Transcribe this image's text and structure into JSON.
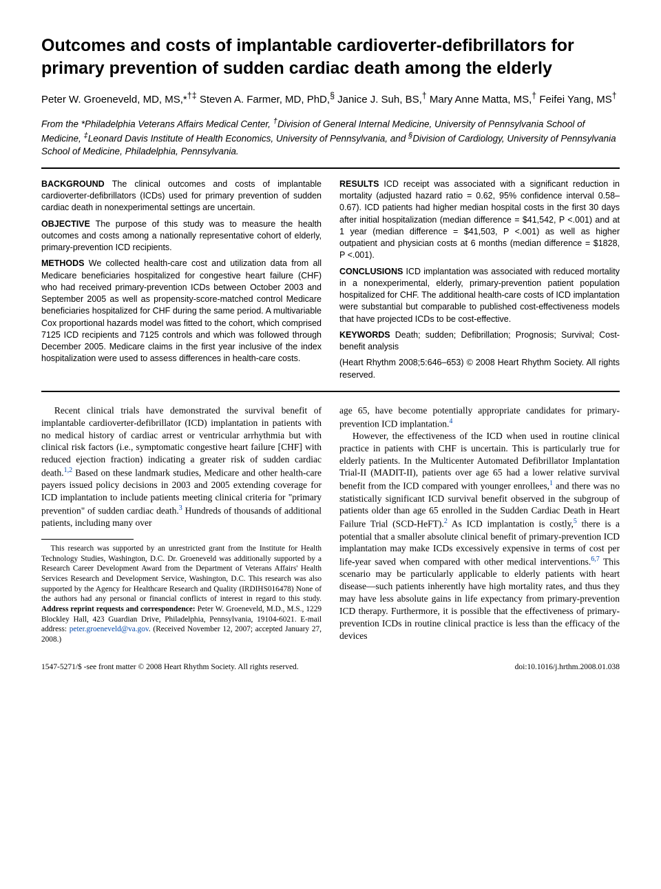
{
  "title": "Outcomes and costs of implantable cardioverter-defibrillators for primary prevention of sudden cardiac death among the elderly",
  "authors_html": "Peter W. Groeneveld, MD, MS,*<sup>†‡</sup> Steven A. Farmer, MD, PhD,<sup>§</sup> Janice J. Suh, BS,<sup>†</sup> Mary Anne Matta, MS,<sup>†</sup> Feifei Yang, MS<sup>†</sup>",
  "affiliations_html": "From the *Philadelphia Veterans Affairs Medical Center, <sup>†</sup>Division of General Internal Medicine, University of Pennsylvania School of Medicine, <sup>‡</sup>Leonard Davis Institute of Health Economics, University of Pennsylvania, and <sup>§</sup>Division of Cardiology, University of Pennsylvania School of Medicine, Philadelphia, Pennsylvania.",
  "abstract": {
    "background": {
      "label": "BACKGROUND",
      "text": "The clinical outcomes and costs of implantable cardioverter-defibrillators (ICDs) used for primary prevention of sudden cardiac death in nonexperimental settings are uncertain."
    },
    "objective": {
      "label": "OBJECTIVE",
      "text": "The purpose of this study was to measure the health outcomes and costs among a nationally representative cohort of elderly, primary-prevention ICD recipients."
    },
    "methods": {
      "label": "METHODS",
      "text": "We collected health-care cost and utilization data from all Medicare beneficiaries hospitalized for congestive heart failure (CHF) who had received primary-prevention ICDs between October 2003 and September 2005 as well as propensity-score-matched control Medicare beneficiaries hospitalized for CHF during the same period. A multivariable Cox proportional hazards model was fitted to the cohort, which comprised 7125 ICD recipients and 7125 controls and which was followed through December 2005. Medicare claims in the first year inclusive of the index hospitalization were used to assess differences in health-care costs."
    },
    "results": {
      "label": "RESULTS",
      "text": "ICD receipt was associated with a significant reduction in mortality (adjusted hazard ratio = 0.62, 95% confidence interval 0.58–0.67). ICD patients had higher median hospital costs in the first 30 days after initial hospitalization (median difference = $41,542, P <.001) and at 1 year (median difference = $41,503, P <.001) as well as higher outpatient and physician costs at 6 months (median difference = $1828, P <.001)."
    },
    "conclusions": {
      "label": "CONCLUSIONS",
      "text": "ICD implantation was associated with reduced mortality in a nonexperimental, elderly, primary-prevention patient population hospitalized for CHF. The additional health-care costs of ICD implantation were substantial but comparable to published cost-effectiveness models that have projected ICDs to be cost-effective."
    },
    "keywords": {
      "label": "KEYWORDS",
      "text": "Death; sudden; Defibrillation; Prognosis; Survival; Cost-benefit analysis"
    },
    "citation": "(Heart Rhythm 2008;5:646–653) © 2008 Heart Rhythm Society. All rights reserved."
  },
  "body": {
    "p1_html": "Recent clinical trials have demonstrated the survival benefit of implantable cardioverter-defibrillator (ICD) implantation in patients with no medical history of cardiac arrest or ventricular arrhythmia but with clinical risk factors (i.e., symptomatic congestive heart failure [CHF] with reduced ejection fraction) indicating a greater risk of sudden cardiac death.<span class=\"sup\">1,2</span> Based on these landmark studies, Medicare and other health-care payers issued policy decisions in 2003 and 2005 extending coverage for ICD implantation to include patients meeting clinical criteria for \"primary prevention\" of sudden cardiac death.<span class=\"sup\">3</span> Hundreds of thousands of additional patients, including many over",
    "p2_html": "age 65, have become potentially appropriate candidates for primary-prevention ICD implantation.<span class=\"sup\">4</span>",
    "p3_html": "However, the effectiveness of the ICD when used in routine clinical practice in patients with CHF is uncertain. This is particularly true for elderly patients. In the Multicenter Automated Defibrillator Implantation Trial-II (MADIT-II), patients over age 65 had a lower relative survival benefit from the ICD compared with younger enrollees,<span class=\"sup\">1</span> and there was no statistically significant ICD survival benefit observed in the subgroup of patients older than age 65 enrolled in the Sudden Cardiac Death in Heart Failure Trial (SCD-HeFT).<span class=\"sup\">2</span> As ICD implantation is costly,<span class=\"sup\">5</span> there is a potential that a smaller absolute clinical benefit of primary-prevention ICD implantation may make ICDs excessively expensive in terms of cost per life-year saved when compared with other medical interventions.<span class=\"sup\">6,7</span> This scenario may be particularly applicable to elderly patients with heart disease—such patients inherently have high mortality rates, and thus they may have less absolute gains in life expectancy from primary-prevention ICD therapy. Furthermore, it is possible that the effectiveness of primary-prevention ICDs in routine clinical practice is less than the efficacy of the devices"
  },
  "footnote_html": "This research was supported by an unrestricted grant from the Institute for Health Technology Studies, Washington, D.C. Dr. Groeneveld was additionally supported by a Research Career Development Award from the Department of Veterans Affairs' Health Services Research and Development Service, Washington, D.C. This research was also supported by the Agency for Healthcare Research and Quality (IRDIHS016478) None of the authors had any personal or financial conflicts of interest in regard to this study. <b>Address reprint requests and correspondence:</b> Peter W. Groeneveld, M.D., M.S., 1229 Blockley Hall, 423 Guardian Drive, Philadelphia, Pennsylvania, 19104-6021. E-mail address: <span class=\"email\">peter.groeneveld@va.gov</span>. (Received November 12, 2007; accepted January 27, 2008.)",
  "footer": {
    "left": "1547-5271/$ -see front matter © 2008 Heart Rhythm Society. All rights reserved.",
    "right": "doi:10.1016/j.hrthm.2008.01.038"
  }
}
